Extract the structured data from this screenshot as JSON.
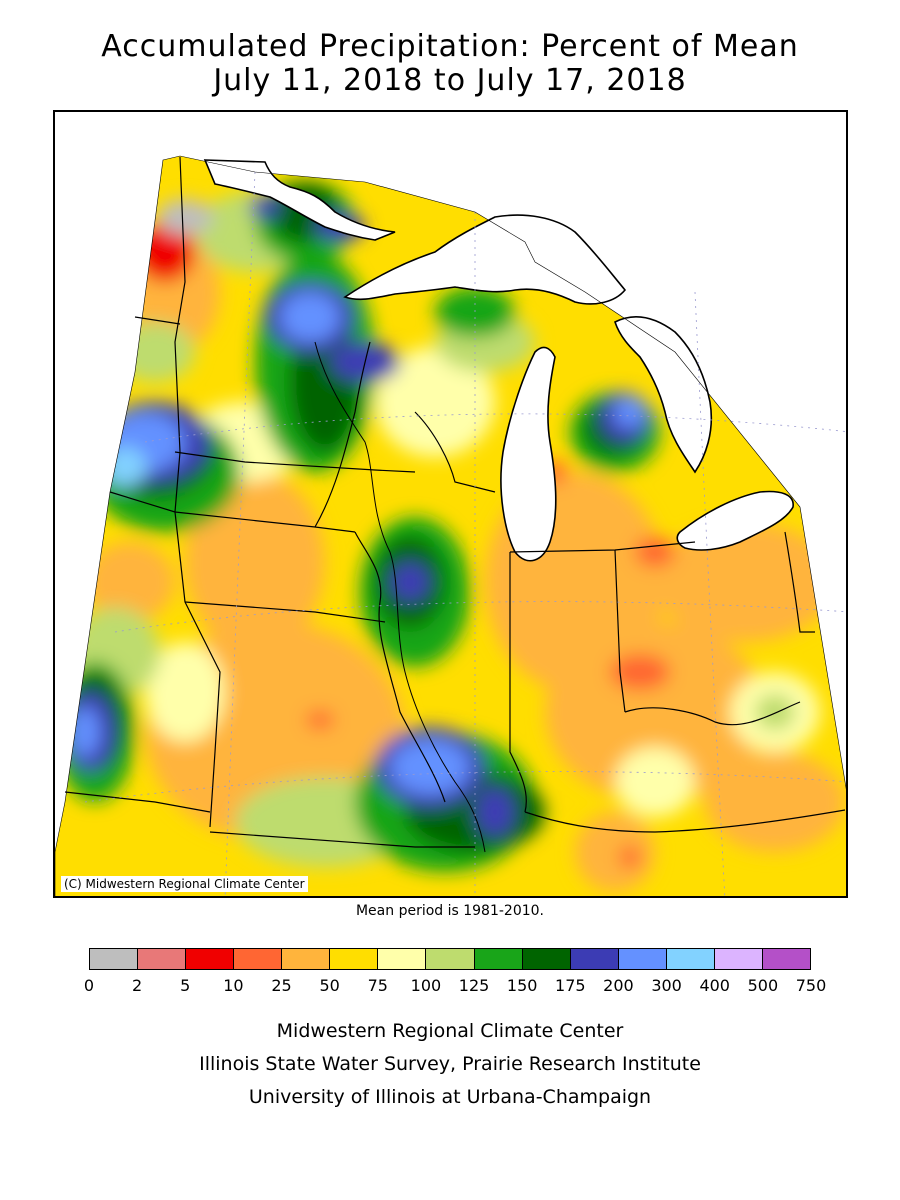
{
  "header": {
    "title_line1": "Accumulated Precipitation: Percent of Mean",
    "title_line2": "July 11, 2018 to July 17, 2018"
  },
  "map": {
    "copyright": "(C) Midwestern Regional Climate Center",
    "mean_period": "Mean period is 1981-2010."
  },
  "legend": {
    "colors": [
      "#bebebe",
      "#e87878",
      "#f00000",
      "#ff6633",
      "#ffb43c",
      "#ffde00",
      "#ffffaa",
      "#bedc6e",
      "#19a519",
      "#006400",
      "#3c3cb4",
      "#6491ff",
      "#82d2ff",
      "#dcb4ff",
      "#b450c8"
    ],
    "ticks": [
      "0",
      "2",
      "5",
      "10",
      "25",
      "50",
      "75",
      "100",
      "125",
      "150",
      "175",
      "200",
      "300",
      "400",
      "500",
      "750"
    ]
  },
  "credits": {
    "line1": "Midwestern Regional Climate Center",
    "line2": "Illinois State Water Survey, Prairie Research Institute",
    "line3": "University of Illinois at Urbana-Champaign"
  }
}
